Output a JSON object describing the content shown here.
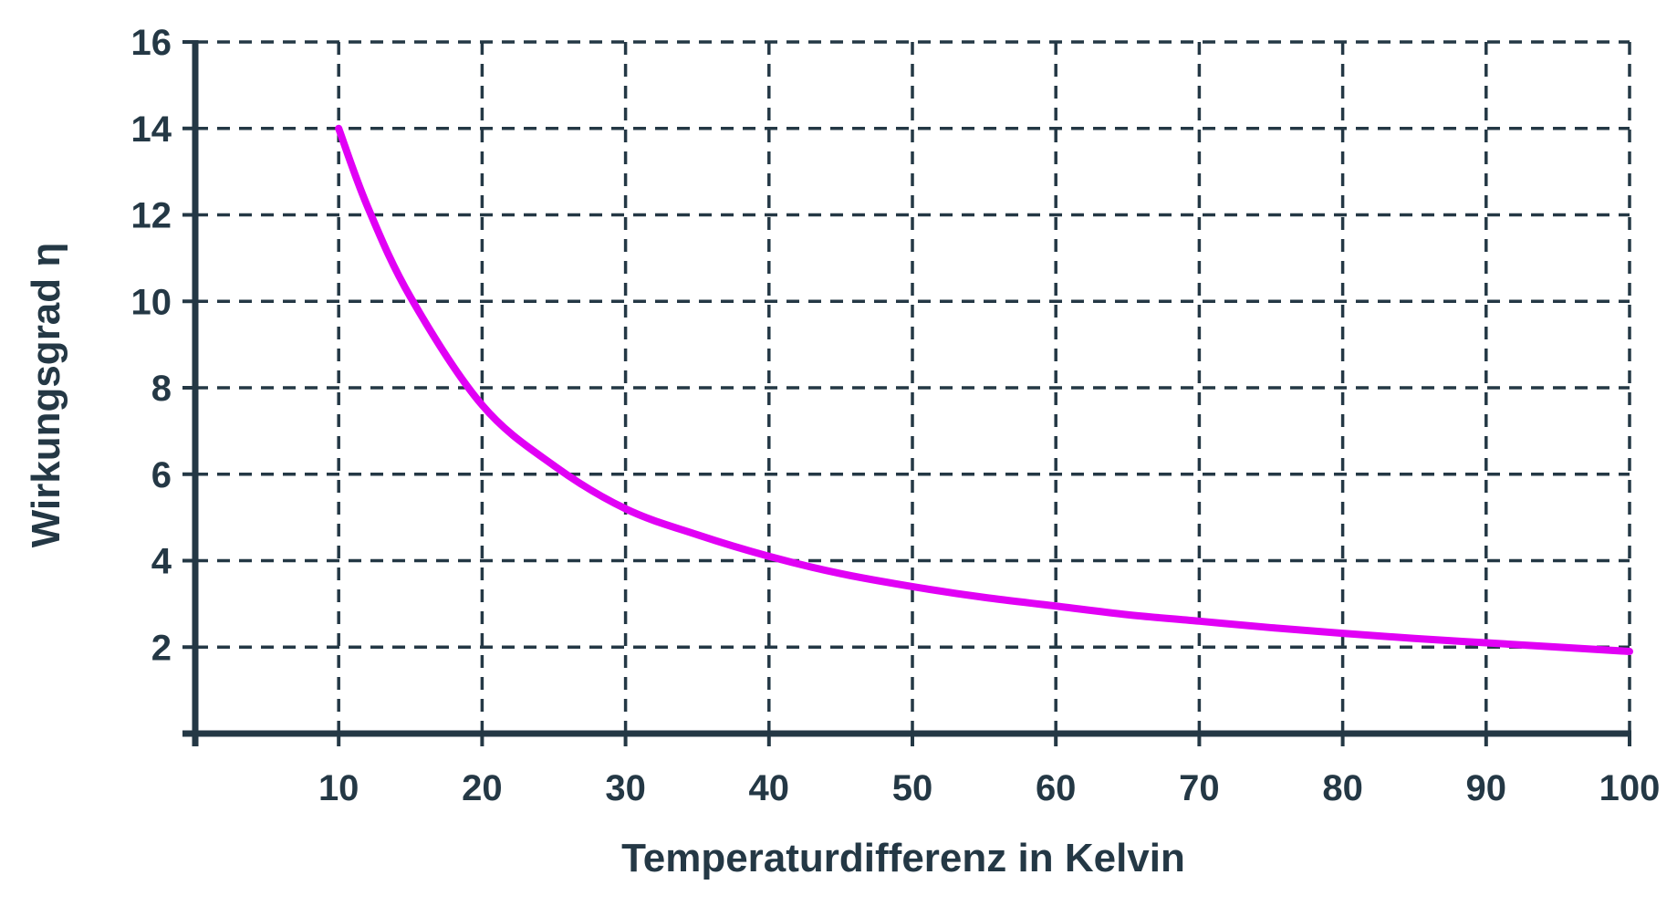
{
  "chart_data": {
    "type": "line",
    "title": "",
    "xlabel": "Temperaturdifferenz in Kelvin",
    "ylabel": "Wirkungsgrad η",
    "xlim": [
      0,
      100
    ],
    "ylim": [
      0,
      16
    ],
    "x_ticks": [
      "10",
      "20",
      "30",
      "40",
      "50",
      "60",
      "70",
      "80",
      "90",
      "100"
    ],
    "y_ticks": [
      "2",
      "4",
      "6",
      "8",
      "10",
      "12",
      "14",
      "16"
    ],
    "grid": true,
    "grid_style": "dashed",
    "series": [
      {
        "color": "#e100f5",
        "x": [
          10,
          12,
          15,
          20,
          25,
          30,
          35,
          40,
          45,
          50,
          55,
          60,
          65,
          70,
          75,
          80,
          85,
          90,
          95,
          100
        ],
        "y": [
          14.0,
          12.2,
          10.1,
          7.6,
          6.2,
          5.2,
          4.6,
          4.1,
          3.7,
          3.4,
          3.15,
          2.95,
          2.75,
          2.6,
          2.45,
          2.32,
          2.2,
          2.1,
          2.0,
          1.9
        ]
      }
    ],
    "colors": {
      "axis": "#243845",
      "grid": "#243845",
      "text": "#243845",
      "line": "#e100f5"
    }
  }
}
